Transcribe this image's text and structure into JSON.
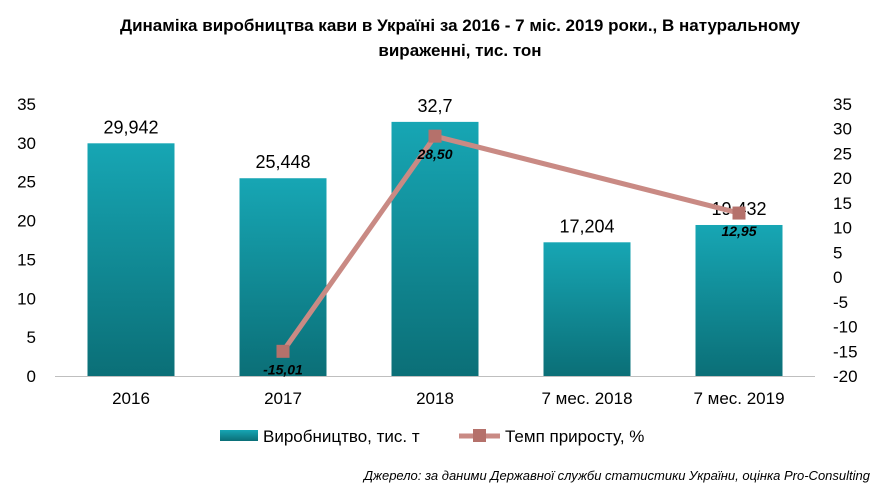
{
  "chart_data": {
    "type": "bar",
    "title_line1": "Динаміка виробництва кави в Україні за 2016 - 7 міс. 2019 роки., В натуральному",
    "title_line2": "вираженні, тис. тон",
    "categories": [
      "2016",
      "2017",
      "2018",
      "7 мес. 2018",
      "7 мес. 2019"
    ],
    "series": [
      {
        "name": "Виробництво, тис. т",
        "type": "bar",
        "axis": "left",
        "color": "#1aa3b2",
        "values": [
          29.942,
          25.448,
          32.7,
          17.204,
          19.432
        ],
        "labels": [
          "29,942",
          "25,448",
          "32,7",
          "17,204",
          "19,432"
        ]
      },
      {
        "name": "Темп приросту, %",
        "type": "line",
        "axis": "right",
        "color": "#c98a84",
        "marker_color": "#b5716b",
        "points": [
          {
            "category": "2017",
            "value": -15.01,
            "label": "-15,01"
          },
          {
            "category": "2018",
            "value": 28.5,
            "label": "28,50"
          },
          {
            "category": "7 мес. 2019",
            "value": 12.95,
            "label": "12,95"
          }
        ]
      }
    ],
    "y_left": {
      "min": 0,
      "max": 35,
      "ticks": [
        "0",
        "5",
        "10",
        "15",
        "20",
        "25",
        "30",
        "35"
      ]
    },
    "y_right": {
      "min": -20,
      "max": 35,
      "ticks": [
        "-20",
        "-15",
        "-10",
        "-5",
        "0",
        "5",
        "10",
        "15",
        "20",
        "25",
        "30",
        "35"
      ]
    },
    "grid": false,
    "legend_position": "bottom",
    "source": "Джерело: за даними Державної служби статистики України, оцінка Pro-Consulting"
  }
}
